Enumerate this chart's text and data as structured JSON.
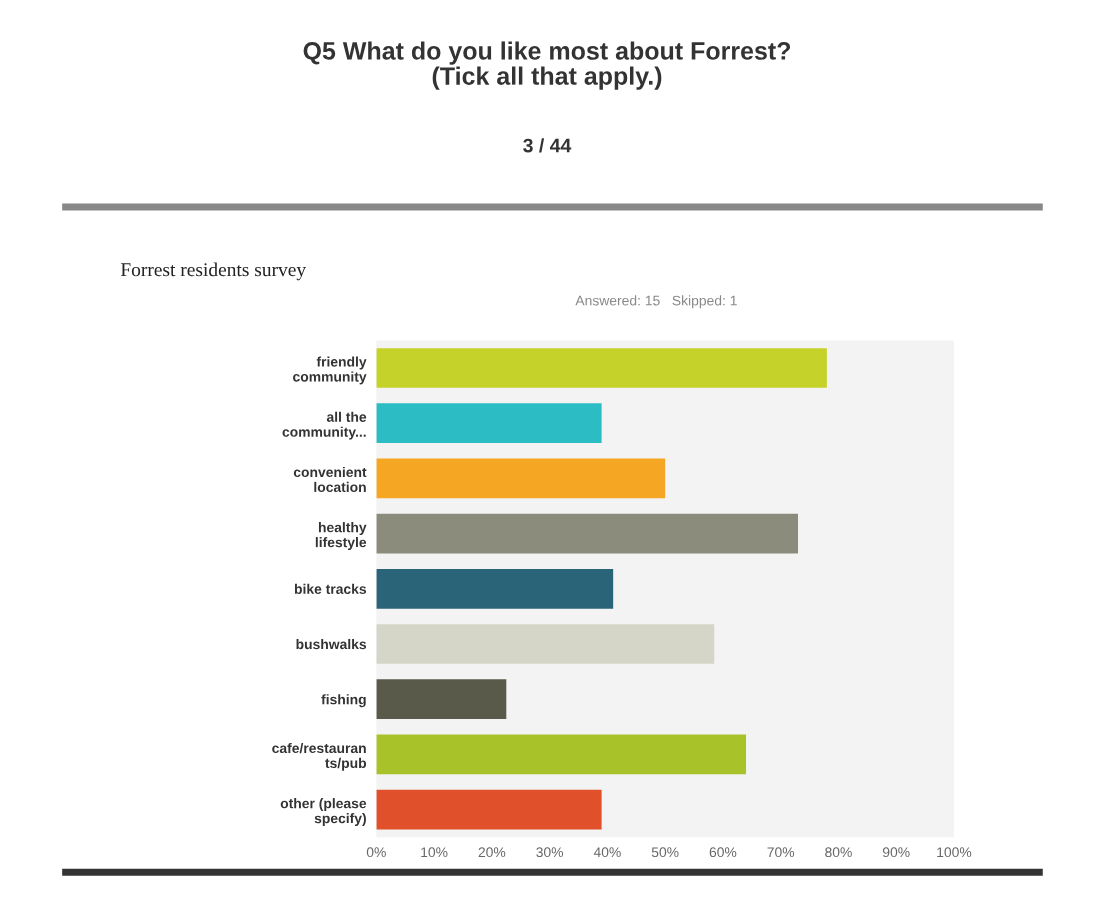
{
  "chart_data": {
    "type": "bar",
    "orientation": "horizontal",
    "title": "Q5 What do you like most about Forrest?\n(Tick all that apply.)",
    "subtitle": "Answered: 15   Skipped: 1",
    "annotations": [
      "3 / 44",
      "Forrest residents survey"
    ],
    "categories": [
      "friendly\ncommunity",
      "all the\ncommunity...",
      "convenient\nlocation",
      "healthy\nlifestyle",
      "bike tracks",
      "bushwalks",
      "fishing",
      "cafe/restauran\nts/pub",
      "other (please\nspecify)"
    ],
    "values": [
      78,
      39,
      50,
      73,
      41,
      58.5,
      22.5,
      64,
      39
    ],
    "colors": [
      "#c5d22a",
      "#2bbcc4",
      "#f5a623",
      "#8c8c7c",
      "#2a6478",
      "#d6d6c8",
      "#5a5a4a",
      "#a8c22a",
      "#e0502a"
    ],
    "xlim": [
      0,
      100
    ],
    "xticks": [
      {
        "value": 0,
        "label": "0%"
      },
      {
        "value": 10,
        "label": "10%"
      },
      {
        "value": 20,
        "label": "20%"
      },
      {
        "value": 30,
        "label": "30%"
      },
      {
        "value": 40,
        "label": "40%"
      },
      {
        "value": 50,
        "label": "50%"
      },
      {
        "value": 60,
        "label": "60%"
      },
      {
        "value": 70,
        "label": "70%"
      },
      {
        "value": 80,
        "label": "80%"
      },
      {
        "value": 90,
        "label": "90%"
      },
      {
        "value": 100,
        "label": "100%"
      }
    ],
    "grid": false
  }
}
